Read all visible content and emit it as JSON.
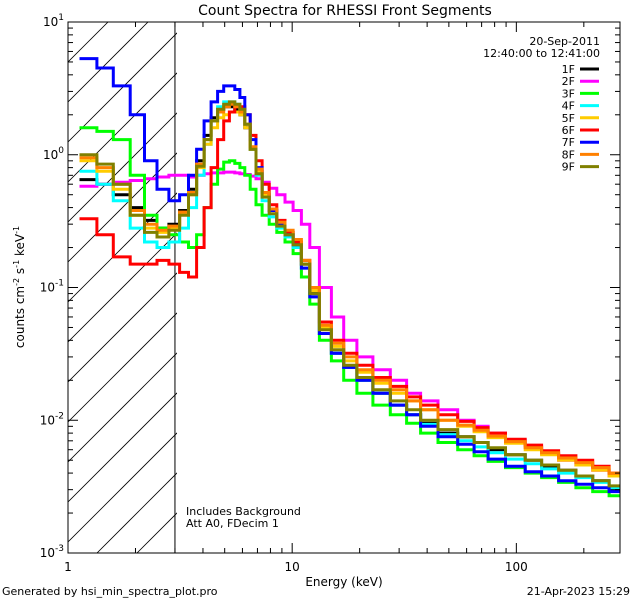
{
  "chart_data": {
    "type": "line",
    "title": "Count Spectra for RHESSI Front Segments",
    "xlabel": "Energy (keV)",
    "ylabel_main": "counts cm",
    "ylabel_exp1": "-2",
    "ylabel_mid": " s",
    "ylabel_exp2": "-1",
    "ylabel_end": " keV",
    "ylabel_exp3": "-1",
    "xscale": "log",
    "yscale": "log",
    "xlim": [
      1,
      290
    ],
    "ylim": [
      0.001,
      10
    ],
    "x_ticks": [
      {
        "value": 1,
        "label": "1"
      },
      {
        "value": 10,
        "label": "10"
      },
      {
        "value": 100,
        "label": "100"
      }
    ],
    "y_ticks": [
      {
        "value": 10,
        "base": "10",
        "exp": "1"
      },
      {
        "value": 1,
        "base": "10",
        "exp": "0"
      },
      {
        "value": 0.1,
        "base": "10",
        "exp": "-1"
      },
      {
        "value": 0.01,
        "base": "10",
        "exp": "-2"
      },
      {
        "value": 0.001,
        "base": "10",
        "exp": "-3"
      }
    ],
    "attenuator_cutoff_kev": 3,
    "date": "20-Sep-2011",
    "time_range": "12:40:00 to 12:41:00",
    "annotations": [
      "Includes Background",
      "Att A0, FDecim 1"
    ],
    "legend_position": "top-right",
    "series": [
      {
        "name": "1F",
        "color": "#000000",
        "x": [
          1.25,
          1.45,
          1.75,
          2.05,
          2.35,
          2.65,
          3.0,
          3.3,
          3.6,
          3.9,
          4.2,
          4.5,
          4.8,
          5.1,
          5.4,
          5.7,
          6.0,
          6.3,
          6.7,
          7.1,
          7.6,
          8.2,
          8.9,
          9.7,
          10.5,
          11.5,
          12.5,
          14,
          16,
          18,
          21,
          25,
          30,
          35,
          40,
          50,
          60,
          70,
          80,
          100,
          120,
          140,
          170,
          200,
          240,
          280
        ],
        "values": [
          0.65,
          0.6,
          0.5,
          0.4,
          0.32,
          0.28,
          0.3,
          0.38,
          0.55,
          0.9,
          1.4,
          1.9,
          2.2,
          2.3,
          2.3,
          2.2,
          2.0,
          1.6,
          1.1,
          0.75,
          0.5,
          0.38,
          0.3,
          0.26,
          0.22,
          0.15,
          0.09,
          0.045,
          0.032,
          0.025,
          0.02,
          0.016,
          0.013,
          0.011,
          0.0095,
          0.008,
          0.0075,
          0.0068,
          0.006,
          0.0055,
          0.005,
          0.0045,
          0.0042,
          0.0038,
          0.0035,
          0.003
        ]
      },
      {
        "name": "2F",
        "color": "#ff00ff",
        "x": [
          1.25,
          1.45,
          1.75,
          2.05,
          2.35,
          2.65,
          3.0,
          3.3,
          3.6,
          3.9,
          4.2,
          4.5,
          4.8,
          5.1,
          5.4,
          5.7,
          6.0,
          6.3,
          6.7,
          7.1,
          7.6,
          8.2,
          8.9,
          9.7,
          10.5,
          11.5,
          12.5,
          14,
          16,
          18,
          21,
          25,
          30,
          35,
          40,
          50,
          60,
          70,
          80,
          100,
          120,
          140,
          170,
          200,
          240,
          280
        ],
        "values": [
          0.58,
          0.6,
          0.62,
          0.64,
          0.66,
          0.68,
          0.7,
          0.7,
          0.68,
          0.7,
          0.72,
          0.73,
          0.73,
          0.74,
          0.74,
          0.73,
          0.72,
          0.71,
          0.69,
          0.66,
          0.62,
          0.56,
          0.5,
          0.44,
          0.38,
          0.3,
          0.2,
          0.1,
          0.06,
          0.04,
          0.03,
          0.024,
          0.02,
          0.016,
          0.014,
          0.012,
          0.01,
          0.009,
          0.008,
          0.007,
          0.0063,
          0.0056,
          0.005,
          0.0046,
          0.0042,
          0.0038
        ]
      },
      {
        "name": "3F",
        "color": "#00ff00",
        "x": [
          1.25,
          1.45,
          1.75,
          2.05,
          2.35,
          2.65,
          3.0,
          3.3,
          3.6,
          3.9,
          4.2,
          4.5,
          4.8,
          5.1,
          5.4,
          5.7,
          6.0,
          6.3,
          6.7,
          7.1,
          7.6,
          8.2,
          8.9,
          9.7,
          10.5,
          11.5,
          12.5,
          14,
          16,
          18,
          21,
          25,
          30,
          35,
          40,
          50,
          60,
          70,
          80,
          100,
          120,
          140,
          170,
          200,
          240,
          280
        ],
        "values": [
          1.6,
          1.5,
          1.3,
          0.7,
          0.35,
          0.28,
          0.25,
          0.22,
          0.2,
          0.25,
          0.4,
          0.6,
          0.78,
          0.88,
          0.9,
          0.86,
          0.8,
          0.7,
          0.55,
          0.42,
          0.35,
          0.3,
          0.26,
          0.22,
          0.18,
          0.12,
          0.075,
          0.04,
          0.028,
          0.02,
          0.016,
          0.013,
          0.011,
          0.0095,
          0.008,
          0.0068,
          0.006,
          0.0054,
          0.0049,
          0.0044,
          0.004,
          0.0037,
          0.0034,
          0.0031,
          0.0029,
          0.0027
        ]
      },
      {
        "name": "4F",
        "color": "#00ffff",
        "x": [
          1.25,
          1.45,
          1.75,
          2.05,
          2.35,
          2.65,
          3.0,
          3.3,
          3.6,
          3.9,
          4.2,
          4.5,
          4.8,
          5.1,
          5.4,
          5.7,
          6.0,
          6.3,
          6.7,
          7.1,
          7.6,
          8.2,
          8.9,
          9.7,
          10.5,
          11.5,
          12.5,
          14,
          16,
          18,
          21,
          25,
          30,
          35,
          40,
          50,
          60,
          70,
          80,
          100,
          120,
          140,
          170,
          200,
          240,
          280
        ],
        "values": [
          0.75,
          0.6,
          0.45,
          0.28,
          0.22,
          0.2,
          0.22,
          0.28,
          0.4,
          0.7,
          1.2,
          1.8,
          2.3,
          2.5,
          2.5,
          2.4,
          2.2,
          1.7,
          1.1,
          0.7,
          0.45,
          0.34,
          0.28,
          0.24,
          0.2,
          0.14,
          0.085,
          0.045,
          0.032,
          0.025,
          0.02,
          0.016,
          0.013,
          0.011,
          0.0093,
          0.0078,
          0.007,
          0.0063,
          0.0057,
          0.0051,
          0.0047,
          0.0043,
          0.004,
          0.0037,
          0.0034,
          0.0031
        ]
      },
      {
        "name": "5F",
        "color": "#ffcc00",
        "x": [
          1.25,
          1.45,
          1.75,
          2.05,
          2.35,
          2.65,
          3.0,
          3.3,
          3.6,
          3.9,
          4.2,
          4.5,
          4.8,
          5.1,
          5.4,
          5.7,
          6.0,
          6.3,
          6.7,
          7.1,
          7.6,
          8.2,
          8.9,
          9.7,
          10.5,
          11.5,
          12.5,
          14,
          16,
          18,
          21,
          25,
          30,
          35,
          40,
          50,
          60,
          70,
          80,
          100,
          120,
          140,
          170,
          200,
          240,
          280
        ],
        "values": [
          0.9,
          0.75,
          0.55,
          0.35,
          0.28,
          0.26,
          0.28,
          0.36,
          0.5,
          0.8,
          1.2,
          1.6,
          1.9,
          2.0,
          2.1,
          2.1,
          2.0,
          1.6,
          1.1,
          0.75,
          0.5,
          0.38,
          0.3,
          0.26,
          0.22,
          0.15,
          0.095,
          0.05,
          0.036,
          0.028,
          0.023,
          0.019,
          0.016,
          0.014,
          0.012,
          0.01,
          0.009,
          0.0082,
          0.0074,
          0.0067,
          0.006,
          0.0055,
          0.005,
          0.0046,
          0.0042,
          0.0038
        ]
      },
      {
        "name": "6F",
        "color": "#ff0000",
        "x": [
          1.25,
          1.45,
          1.75,
          2.05,
          2.35,
          2.65,
          3.0,
          3.3,
          3.6,
          3.9,
          4.2,
          4.5,
          4.8,
          5.1,
          5.4,
          5.7,
          6.0,
          6.3,
          6.7,
          7.1,
          7.6,
          8.2,
          8.9,
          9.7,
          10.5,
          11.5,
          12.5,
          14,
          16,
          18,
          21,
          25,
          30,
          35,
          40,
          50,
          60,
          70,
          80,
          100,
          120,
          140,
          170,
          200,
          240,
          280
        ],
        "values": [
          0.33,
          0.25,
          0.17,
          0.15,
          0.15,
          0.16,
          0.15,
          0.13,
          0.12,
          0.2,
          0.4,
          0.8,
          1.3,
          1.8,
          2.1,
          2.3,
          2.3,
          2.0,
          1.4,
          0.9,
          0.6,
          0.42,
          0.32,
          0.26,
          0.22,
          0.16,
          0.1,
          0.055,
          0.04,
          0.032,
          0.026,
          0.021,
          0.018,
          0.015,
          0.013,
          0.011,
          0.0098,
          0.0088,
          0.008,
          0.0072,
          0.0065,
          0.0059,
          0.0054,
          0.005,
          0.0045,
          0.004
        ]
      },
      {
        "name": "7F",
        "color": "#0000ff",
        "x": [
          1.25,
          1.45,
          1.75,
          2.05,
          2.35,
          2.65,
          3.0,
          3.3,
          3.6,
          3.9,
          4.2,
          4.5,
          4.8,
          5.1,
          5.4,
          5.7,
          6.0,
          6.3,
          6.7,
          7.1,
          7.6,
          8.2,
          8.9,
          9.7,
          10.5,
          11.5,
          12.5,
          14,
          16,
          18,
          21,
          25,
          30,
          35,
          40,
          50,
          60,
          70,
          80,
          100,
          120,
          140,
          170,
          200,
          240,
          280
        ],
        "values": [
          5.3,
          4.5,
          3.3,
          2.0,
          0.9,
          0.55,
          0.45,
          0.5,
          0.7,
          1.1,
          1.8,
          2.5,
          3.0,
          3.3,
          3.3,
          3.1,
          2.7,
          2.0,
          1.3,
          0.8,
          0.52,
          0.38,
          0.3,
          0.25,
          0.21,
          0.14,
          0.085,
          0.045,
          0.032,
          0.025,
          0.02,
          0.016,
          0.013,
          0.011,
          0.009,
          0.0075,
          0.0066,
          0.0058,
          0.0051,
          0.0045,
          0.0041,
          0.0038,
          0.0035,
          0.0033,
          0.0031,
          0.0029
        ]
      },
      {
        "name": "8F",
        "color": "#ff8000",
        "x": [
          1.25,
          1.45,
          1.75,
          2.05,
          2.35,
          2.65,
          3.0,
          3.3,
          3.6,
          3.9,
          4.2,
          4.5,
          4.8,
          5.1,
          5.4,
          5.7,
          6.0,
          6.3,
          6.7,
          7.1,
          7.6,
          8.2,
          8.9,
          9.7,
          10.5,
          11.5,
          12.5,
          14,
          16,
          18,
          21,
          25,
          30,
          35,
          40,
          50,
          60,
          70,
          80,
          100,
          120,
          140,
          170,
          200,
          240,
          280
        ],
        "values": [
          0.95,
          0.8,
          0.6,
          0.38,
          0.3,
          0.27,
          0.29,
          0.37,
          0.52,
          0.85,
          1.3,
          1.8,
          2.1,
          2.3,
          2.4,
          2.3,
          2.1,
          1.7,
          1.15,
          0.78,
          0.52,
          0.39,
          0.31,
          0.27,
          0.23,
          0.16,
          0.1,
          0.052,
          0.038,
          0.03,
          0.024,
          0.02,
          0.017,
          0.014,
          0.012,
          0.01,
          0.0092,
          0.0084,
          0.0076,
          0.0069,
          0.0062,
          0.0057,
          0.0052,
          0.0048,
          0.0044,
          0.004
        ]
      },
      {
        "name": "9F",
        "color": "#808000",
        "x": [
          1.25,
          1.45,
          1.75,
          2.05,
          2.35,
          2.65,
          3.0,
          3.3,
          3.6,
          3.9,
          4.2,
          4.5,
          4.8,
          5.1,
          5.4,
          5.7,
          6.0,
          6.3,
          6.7,
          7.1,
          7.6,
          8.2,
          8.9,
          9.7,
          10.5,
          11.5,
          12.5,
          14,
          16,
          18,
          21,
          25,
          30,
          35,
          40,
          50,
          60,
          70,
          80,
          100,
          120,
          140,
          170,
          200,
          240,
          280
        ],
        "values": [
          1.0,
          0.85,
          0.6,
          0.35,
          0.26,
          0.24,
          0.27,
          0.35,
          0.5,
          0.82,
          1.3,
          1.8,
          2.2,
          2.4,
          2.5,
          2.4,
          2.2,
          1.7,
          1.1,
          0.72,
          0.48,
          0.36,
          0.29,
          0.25,
          0.21,
          0.15,
          0.09,
          0.048,
          0.034,
          0.026,
          0.021,
          0.017,
          0.014,
          0.012,
          0.01,
          0.0085,
          0.0075,
          0.0068,
          0.0062,
          0.0055,
          0.005,
          0.0046,
          0.0042,
          0.0038,
          0.0035,
          0.0032
        ]
      }
    ]
  },
  "footer": {
    "generated_by": "Generated by hsi_min_spectra_plot.pro",
    "timestamp": "21-Apr-2023 15:29"
  }
}
